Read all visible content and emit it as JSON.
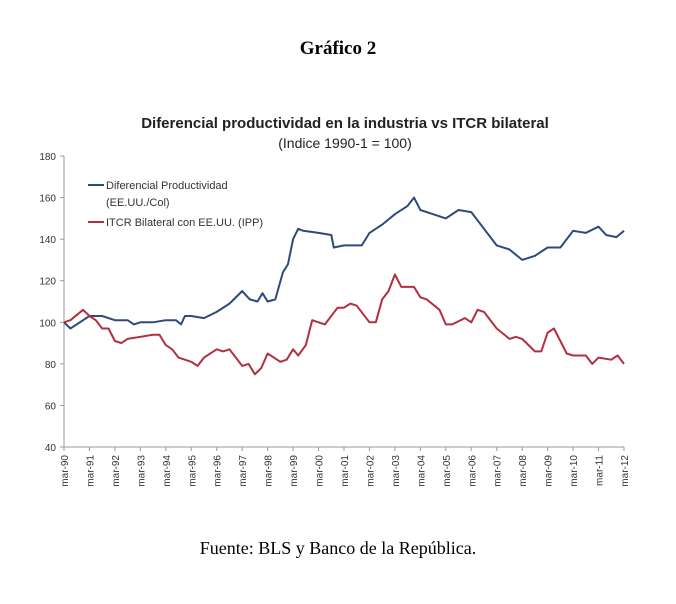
{
  "figure_title": "Gráfico 2",
  "source": "Fuente: BLS y Banco de la República.",
  "chart_data": {
    "type": "line",
    "title": "Diferencial productividad en la industria vs ITCR bilateral",
    "subtitle": "(Indice 1990-1 = 100)",
    "xlabel": "",
    "ylabel": "",
    "ylim": [
      40,
      180
    ],
    "yticks": [
      "40",
      "60",
      "80",
      "100",
      "120",
      "140",
      "160",
      "180"
    ],
    "xlim": [
      1990,
      2012
    ],
    "xticks": [
      "mar-90",
      "mar-91",
      "mar-92",
      "mar-93",
      "mar-94",
      "mar-95",
      "mar-96",
      "mar-97",
      "mar-98",
      "mar-99",
      "mar-00",
      "mar-01",
      "mar-02",
      "mar-03",
      "mar-04",
      "mar-05",
      "mar-06",
      "mar-07",
      "mar-08",
      "mar-09",
      "mar-10",
      "mar-11",
      "mar-12"
    ],
    "grid": false,
    "legend_position": "top-left",
    "series": [
      {
        "name": "Diferencial Productividad",
        "name_line2": "(EE.UU./Col)",
        "color": "#2e4a7a",
        "x": [
          1990,
          1990.25,
          1990.75,
          1991,
          1991.5,
          1992,
          1992.5,
          1992.75,
          1993,
          1993.5,
          1994,
          1994.4,
          1994.6,
          1994.75,
          1995,
          1995.5,
          1996,
          1996.5,
          1997,
          1997.3,
          1997.6,
          1997.8,
          1998,
          1998.3,
          1998.6,
          1998.8,
          1999,
          1999.2,
          1999.4,
          2000,
          2000.5,
          2000.6,
          2001,
          2001.7,
          2002,
          2002.5,
          2003,
          2003.5,
          2003.75,
          2004,
          2004.5,
          2005,
          2005.5,
          2006,
          2006.5,
          2007,
          2007.5,
          2008,
          2008.5,
          2009,
          2009.5,
          2010,
          2010.5,
          2011,
          2011.3,
          2011.7,
          2012
        ],
        "values": [
          100,
          97,
          101,
          103,
          103,
          101,
          101,
          99,
          100,
          100,
          101,
          101,
          99,
          103,
          103,
          102,
          105,
          109,
          115,
          111,
          110,
          114,
          110,
          111,
          124,
          128,
          140,
          145,
          144,
          143,
          142,
          136,
          137,
          137,
          143,
          147,
          152,
          156,
          160,
          154,
          152,
          150,
          154,
          153,
          145,
          137,
          135,
          130,
          132,
          136,
          136,
          144,
          143,
          146,
          142,
          141,
          144
        ]
      },
      {
        "name": "ITCR Bilateral con EE.UU. (IPP)",
        "color": "#b0303f",
        "x": [
          1990,
          1990.25,
          1990.75,
          1991,
          1991.25,
          1991.5,
          1991.75,
          1992,
          1992.25,
          1992.5,
          1993,
          1993.5,
          1993.75,
          1994,
          1994.25,
          1994.5,
          1995,
          1995.25,
          1995.5,
          1996,
          1996.25,
          1996.5,
          1997,
          1997.25,
          1997.5,
          1997.75,
          1998,
          1998.5,
          1998.75,
          1999,
          1999.2,
          1999.5,
          1999.75,
          2000,
          2000.25,
          2000.75,
          2001,
          2001.25,
          2001.5,
          2002,
          2002.25,
          2002.5,
          2002.75,
          2003,
          2003.25,
          2003.75,
          2004,
          2004.25,
          2004.75,
          2005,
          2005.25,
          2005.75,
          2006,
          2006.25,
          2006.5,
          2007,
          2007.5,
          2007.75,
          2008,
          2008.5,
          2008.75,
          2009,
          2009.25,
          2009.75,
          2010,
          2010.5,
          2010.75,
          2011,
          2011.5,
          2011.75,
          2012
        ],
        "values": [
          100,
          101,
          106,
          103,
          101,
          97,
          97,
          91,
          90,
          92,
          93,
          94,
          94,
          89,
          87,
          83,
          81,
          79,
          83,
          87,
          86,
          87,
          79,
          80,
          75,
          78,
          85,
          81,
          82,
          87,
          84,
          89,
          101,
          100,
          99,
          107,
          107,
          109,
          108,
          100,
          100,
          111,
          115,
          123,
          117,
          117,
          112,
          111,
          106,
          99,
          99,
          102,
          100,
          106,
          105,
          97,
          92,
          93,
          92,
          86,
          86,
          95,
          97,
          85,
          84,
          84,
          80,
          83,
          82,
          84,
          80
        ]
      }
    ]
  }
}
